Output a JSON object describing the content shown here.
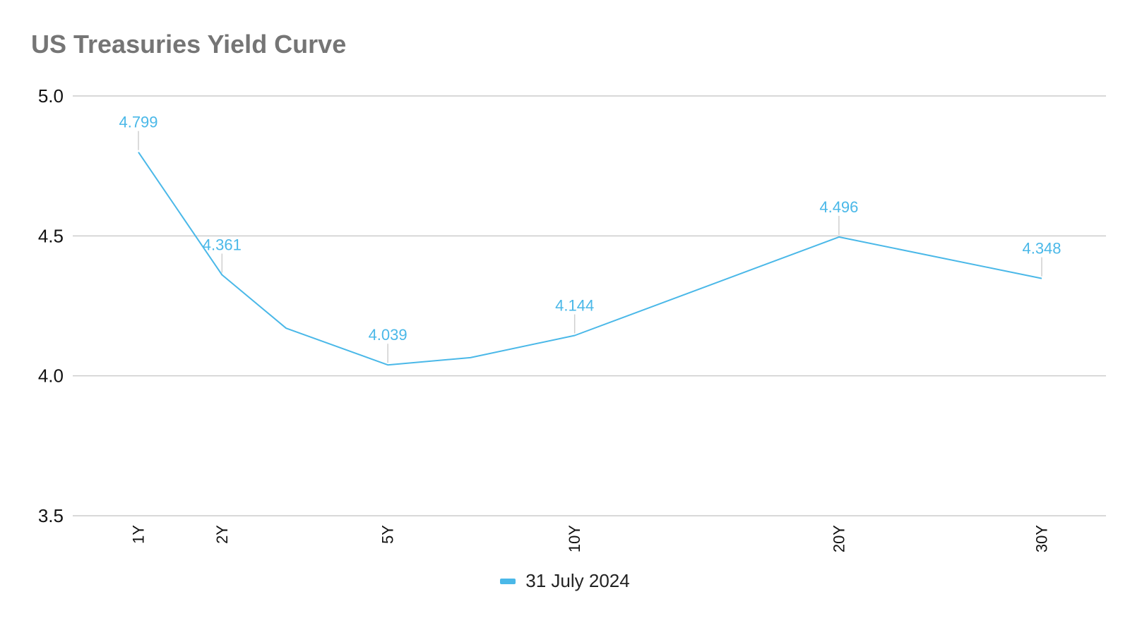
{
  "title": "US Treasuries Yield Curve",
  "colors": {
    "series": "#4ab8e8",
    "grid": "#cccccc",
    "axis_text": "#111111",
    "title": "#757575"
  },
  "chart_data": {
    "type": "line",
    "title": "US Treasuries Yield Curve",
    "xlabel": "",
    "ylabel": "",
    "x_axis_unit": "maturity in years",
    "ylim": [
      3.5,
      5.0
    ],
    "y_ticks": [
      "3.5",
      "4.0",
      "4.5",
      "5.0"
    ],
    "grid": true,
    "legend_position": "bottom",
    "x": [
      1,
      2,
      3,
      5,
      7,
      10,
      20,
      30
    ],
    "x_tick_labels": {
      "1": "1Y",
      "2": "2Y",
      "5": "5Y",
      "10": "10Y",
      "20": "20Y",
      "30": "30Y"
    },
    "series": [
      {
        "name": "31 July 2024",
        "values": [
          4.799,
          4.361,
          4.17,
          4.039,
          4.065,
          4.144,
          4.496,
          4.348
        ],
        "labeled": [
          true,
          true,
          false,
          true,
          false,
          true,
          true,
          true
        ],
        "data_labels": [
          "4.799",
          "4.361",
          "",
          "4.039",
          "",
          "4.144",
          "4.496",
          "4.348"
        ]
      }
    ]
  }
}
